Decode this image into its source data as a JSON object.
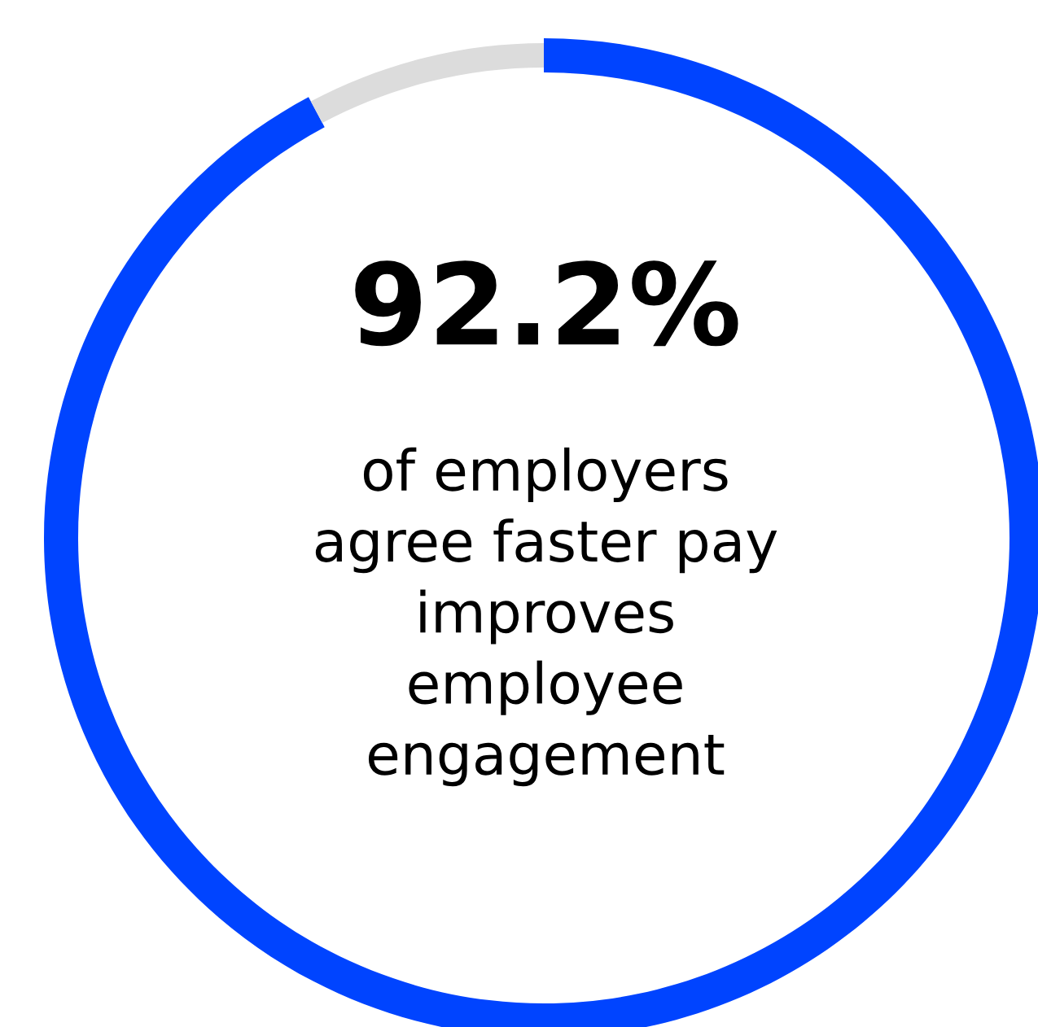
{
  "chart_data": {
    "type": "donut",
    "categories": [
      null,
      null
    ],
    "values": [
      92.2,
      7.8
    ],
    "colors": [
      "#0044ff",
      "#dcdcdc"
    ],
    "annotations": [
      "92.2%",
      "of employers\nagree faster pay\nimproves\nemployee\nengagement"
    ]
  }
}
